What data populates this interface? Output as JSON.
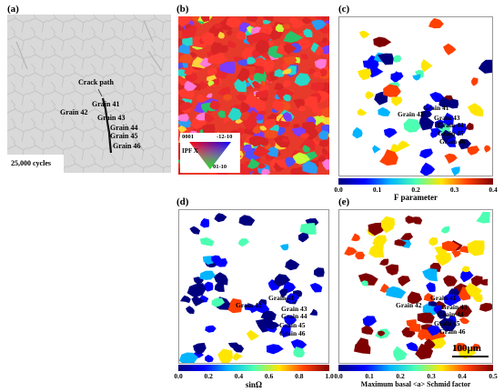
{
  "panels": {
    "a": {
      "label": "(a)",
      "crack_path": "Crack path",
      "cycles": "25,000 cycles",
      "grains": [
        "Grain 41",
        "Grain 42",
        "Grain 43",
        "Grain 44",
        "Grain 45",
        "Grain 46"
      ]
    },
    "b": {
      "label": "(b)",
      "ipf_title": "IPF X",
      "ipf_corner_tl": "0001",
      "ipf_corner_tr": "-12-10",
      "ipf_corner_b": "01-10"
    },
    "c": {
      "label": "(c)",
      "grains": [
        "Grain 41",
        "Grain 42",
        "Grain 43",
        "Grain 44",
        "Grain 45",
        "Grain 46"
      ],
      "colorbar_ticks": [
        "0.0",
        "0.1",
        "0.2",
        "0.3",
        "0.4"
      ],
      "colorbar_title": "F parameter"
    },
    "d": {
      "label": "(d)",
      "grains": [
        "Grain 41",
        "Grain 42",
        "Grain 43",
        "Grain 44",
        "Grain 45",
        "Grain 46"
      ],
      "colorbar_ticks": [
        "0.0",
        "0.2",
        "0.4",
        "0.6",
        "0.8",
        "1.0"
      ],
      "colorbar_title": "sinΩ"
    },
    "e": {
      "label": "(e)",
      "grains": [
        "Grain 41",
        "Grain 42",
        "Grain 43",
        "Grain 44",
        "Grain 45",
        "Grain 46"
      ],
      "colorbar_ticks": [
        "0.0",
        "0.1",
        "0.2",
        "0.3",
        "0.4",
        "0.5"
      ],
      "colorbar_title": "Maximum basal <a> Schmid factor",
      "scalebar": "100μm"
    }
  },
  "colors": {
    "jet": [
      "#00007f",
      "#0000ff",
      "#00b4ff",
      "#4dffb3",
      "#ffe600",
      "#ff4000",
      "#7f0000"
    ]
  }
}
